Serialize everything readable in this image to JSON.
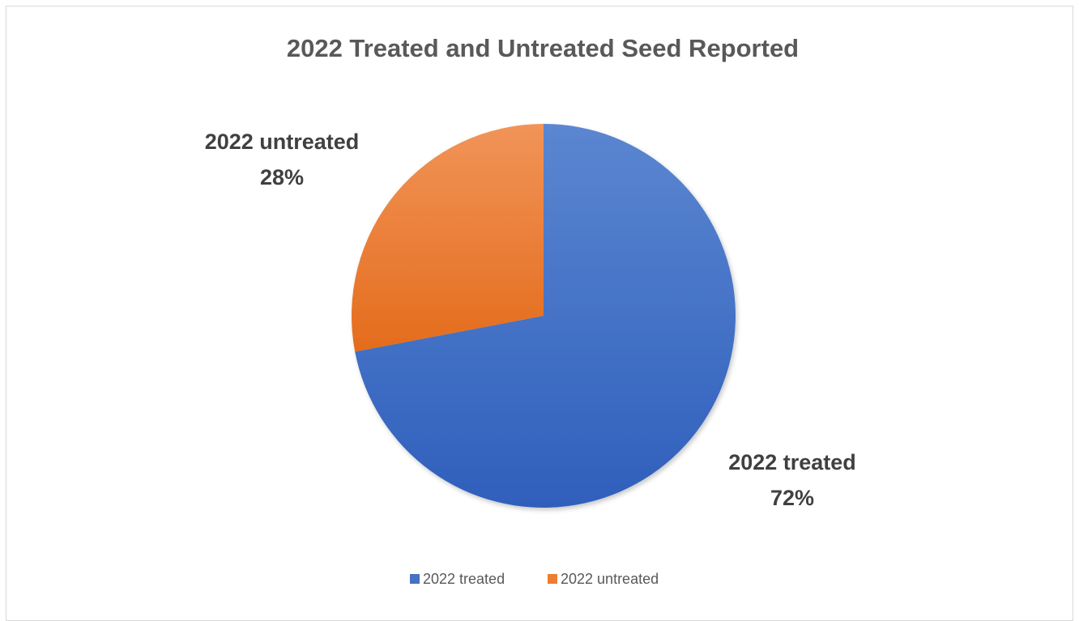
{
  "chart_data": {
    "type": "pie",
    "title": "2022 Treated and Untreated Seed Reported",
    "categories": [
      "2022 treated",
      "2022 untreated"
    ],
    "values": [
      72,
      28
    ],
    "unit": "%",
    "colors": [
      "#4472c4",
      "#ed7d31"
    ],
    "data_labels": [
      {
        "name": "2022 treated",
        "percent": "72%"
      },
      {
        "name": "2022 untreated",
        "percent": "28%"
      }
    ],
    "legend": {
      "placement": "bottom",
      "entries": [
        "2022 treated",
        "2022 untreated"
      ]
    }
  }
}
